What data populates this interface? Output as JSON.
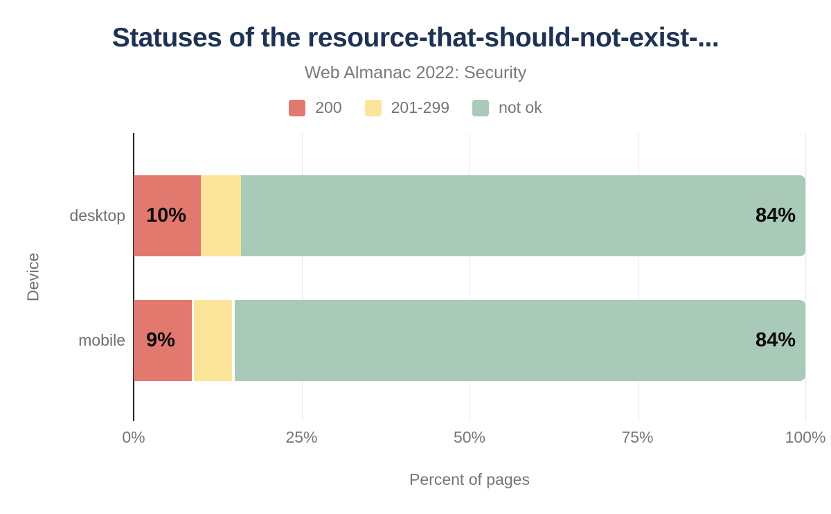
{
  "chart_data": {
    "type": "bar",
    "orientation": "horizontal",
    "stacked": true,
    "title": "Statuses of the resource-that-should-not-exist-...",
    "subtitle": "Web Almanac 2022: Security",
    "xlabel": "Percent of pages",
    "ylabel": "Device",
    "categories": [
      "desktop",
      "mobile"
    ],
    "x_ticks": [
      "0%",
      "25%",
      "50%",
      "75%",
      "100%"
    ],
    "xlim": [
      0,
      100
    ],
    "grid": "vertical",
    "legend_position": "top",
    "series": [
      {
        "name": "200",
        "color": "#e2796f",
        "values": [
          10,
          9
        ],
        "data_labels": [
          "10%",
          "9%"
        ],
        "label_align": "start"
      },
      {
        "name": "201-299",
        "color": "#fde49b",
        "values": [
          6,
          6
        ],
        "data_labels": [
          "",
          ""
        ],
        "label_align": "none"
      },
      {
        "name": "not ok",
        "color": "#a9cab8",
        "values": [
          84,
          84
        ],
        "data_labels": [
          "84%",
          "84%"
        ],
        "label_align": "end"
      }
    ],
    "colors": {
      "title": "#1f3254",
      "subtitle": "#7a7a7a",
      "axis_text": "#757575",
      "gridline": "#e9e9e9",
      "axis_line": "#222222",
      "data_label": "#0b0b0b"
    }
  }
}
